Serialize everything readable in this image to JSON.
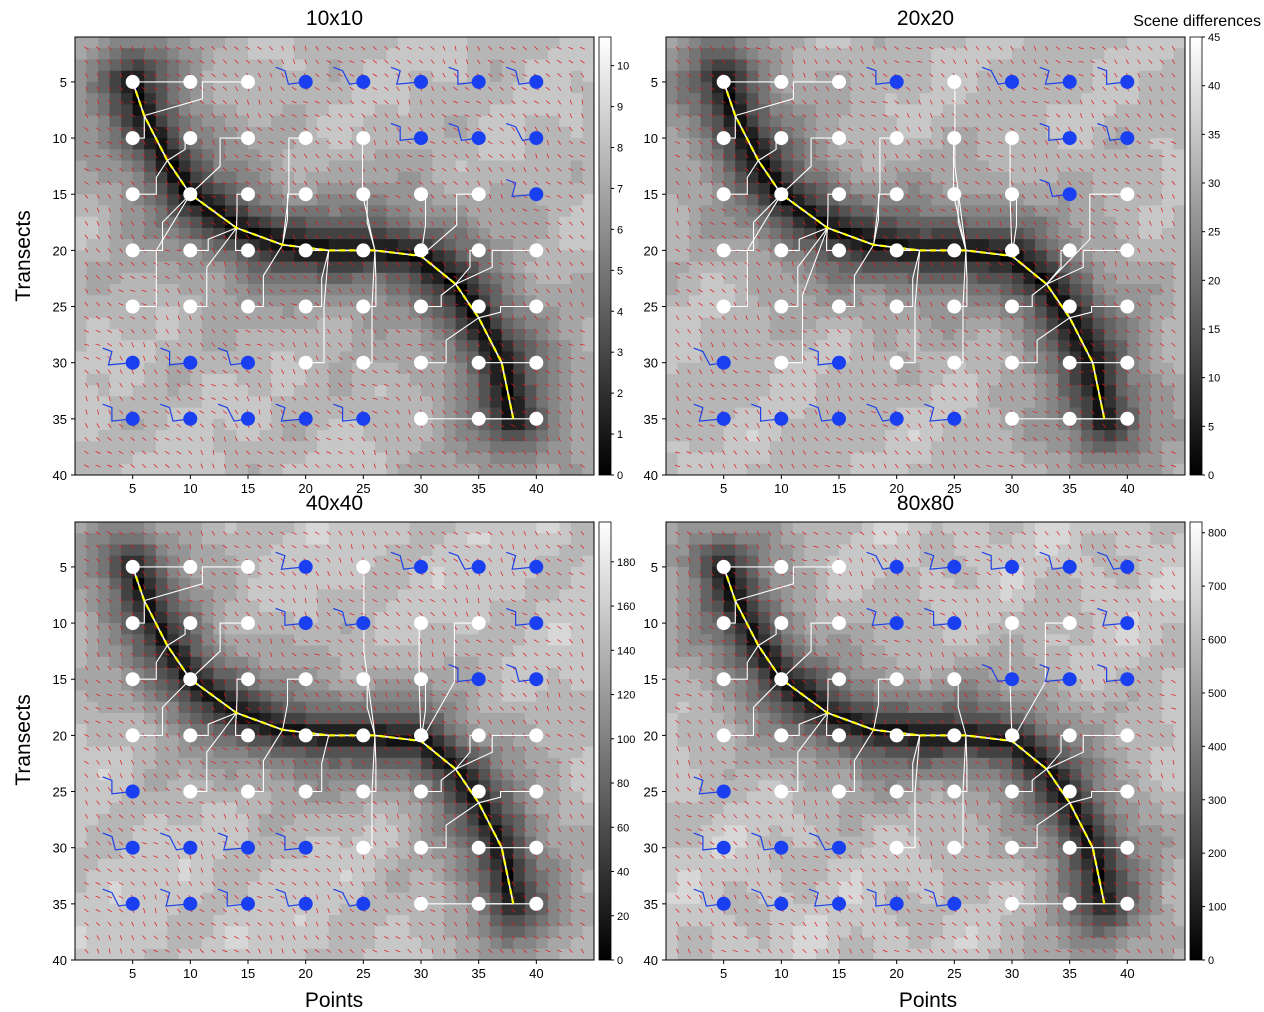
{
  "figure": {
    "colorbar_title": "Scene differences",
    "xlabel": "Points",
    "ylabel": "Transects"
  },
  "colors": {
    "grid_point_white": "#ffffff",
    "grid_point_blue": "#1a3ff0",
    "path_blue": "#1e40e6",
    "path_white": "#ffffff",
    "reference_line": "#ffff00",
    "trace_line": "#ffffff",
    "gradient_arrows": "#e4151b",
    "surface_low": "#000000",
    "surface_high": "#e8e8e8"
  },
  "chart_data": [
    {
      "type": "heatmap",
      "title": "10x10",
      "xlim": [
        0,
        45
      ],
      "ylim": [
        40,
        1
      ],
      "x_ticks": [
        5,
        10,
        15,
        20,
        25,
        30,
        35,
        40
      ],
      "y_ticks": [
        5,
        10,
        15,
        20,
        25,
        30,
        35,
        40
      ],
      "colorbar": {
        "min": 0,
        "max": 10.7,
        "ticks": [
          0,
          1,
          2,
          3,
          4,
          5,
          6,
          7,
          8,
          9,
          10
        ]
      },
      "grid_points": {
        "x": [
          5,
          10,
          15,
          20,
          25,
          30,
          35,
          40
        ],
        "y": [
          5,
          10,
          15,
          20,
          25,
          30,
          35
        ],
        "status": [
          [
            "W",
            "W",
            "W",
            "B",
            "B",
            "B",
            "B",
            "B"
          ],
          [
            "W",
            "W",
            "W",
            "W",
            "W",
            "B",
            "B",
            "B"
          ],
          [
            "W",
            "W",
            "W",
            "W",
            "W",
            "W",
            "W",
            "B"
          ],
          [
            "W",
            "W",
            "W",
            "W",
            "W",
            "W",
            "W",
            "W"
          ],
          [
            "W",
            "W",
            "W",
            "W",
            "W",
            "W",
            "W",
            "W"
          ],
          [
            "B",
            "B",
            "B",
            "W",
            "W",
            "W",
            "W",
            "W"
          ],
          [
            "B",
            "B",
            "B",
            "B",
            "B",
            "W",
            "W",
            "W"
          ]
        ]
      },
      "valley_path": [
        [
          5,
          5
        ],
        [
          6,
          8
        ],
        [
          8,
          12
        ],
        [
          10,
          15
        ],
        [
          14,
          18
        ],
        [
          18,
          19.5
        ],
        [
          22,
          20
        ],
        [
          26,
          20
        ],
        [
          30,
          20.5
        ],
        [
          33,
          23
        ],
        [
          35,
          26
        ],
        [
          37,
          30
        ],
        [
          38,
          35
        ]
      ]
    },
    {
      "type": "heatmap",
      "title": "20x20",
      "xlim": [
        0,
        45
      ],
      "ylim": [
        40,
        1
      ],
      "x_ticks": [
        5,
        10,
        15,
        20,
        25,
        30,
        35,
        40
      ],
      "y_ticks": [
        5,
        10,
        15,
        20,
        25,
        30,
        35,
        40
      ],
      "colorbar": {
        "min": 0,
        "max": 45,
        "ticks": [
          0,
          5,
          10,
          15,
          20,
          25,
          30,
          35,
          40,
          45
        ]
      },
      "grid_points": {
        "x": [
          5,
          10,
          15,
          20,
          25,
          30,
          35,
          40
        ],
        "y": [
          5,
          10,
          15,
          20,
          25,
          30,
          35
        ],
        "status": [
          [
            "W",
            "W",
            "W",
            "B",
            "W",
            "B",
            "B",
            "B"
          ],
          [
            "W",
            "W",
            "W",
            "W",
            "W",
            "W",
            "B",
            "B"
          ],
          [
            "W",
            "W",
            "W",
            "W",
            "W",
            "W",
            "B",
            "W"
          ],
          [
            "W",
            "W",
            "W",
            "W",
            "W",
            "W",
            "W",
            "W"
          ],
          [
            "W",
            "W",
            "W",
            "W",
            "W",
            "W",
            "W",
            "W"
          ],
          [
            "B",
            "W",
            "B",
            "W",
            "W",
            "W",
            "W",
            "W"
          ],
          [
            "B",
            "B",
            "B",
            "B",
            "B",
            "W",
            "W",
            "W"
          ]
        ]
      },
      "valley_path": [
        [
          5,
          5
        ],
        [
          6,
          8
        ],
        [
          8,
          12
        ],
        [
          10,
          15
        ],
        [
          14,
          18
        ],
        [
          18,
          19.5
        ],
        [
          22,
          20
        ],
        [
          26,
          20
        ],
        [
          30,
          20.5
        ],
        [
          33,
          23
        ],
        [
          35,
          26
        ],
        [
          37,
          30
        ],
        [
          38,
          35
        ]
      ]
    },
    {
      "type": "heatmap",
      "title": "40x40",
      "xlim": [
        0,
        45
      ],
      "ylim": [
        40,
        1
      ],
      "x_ticks": [
        5,
        10,
        15,
        20,
        25,
        30,
        35,
        40
      ],
      "y_ticks": [
        5,
        10,
        15,
        20,
        25,
        30,
        35,
        40
      ],
      "colorbar": {
        "min": 0,
        "max": 198,
        "ticks": [
          0,
          20,
          40,
          60,
          80,
          100,
          120,
          140,
          160,
          180
        ]
      },
      "grid_points": {
        "x": [
          5,
          10,
          15,
          20,
          25,
          30,
          35,
          40
        ],
        "y": [
          5,
          10,
          15,
          20,
          25,
          30,
          35
        ],
        "status": [
          [
            "W",
            "W",
            "W",
            "B",
            "W",
            "B",
            "B",
            "B"
          ],
          [
            "W",
            "W",
            "W",
            "B",
            "B",
            "W",
            "W",
            "B"
          ],
          [
            "W",
            "W",
            "W",
            "W",
            "W",
            "W",
            "B",
            "B"
          ],
          [
            "W",
            "W",
            "W",
            "W",
            "W",
            "W",
            "W",
            "W"
          ],
          [
            "B",
            "W",
            "W",
            "W",
            "W",
            "W",
            "W",
            "W"
          ],
          [
            "B",
            "B",
            "B",
            "B",
            "W",
            "W",
            "W",
            "W"
          ],
          [
            "B",
            "B",
            "B",
            "B",
            "B",
            "W",
            "W",
            "W"
          ]
        ]
      },
      "valley_path": [
        [
          5,
          5
        ],
        [
          6,
          8
        ],
        [
          8,
          12
        ],
        [
          10,
          15
        ],
        [
          14,
          18
        ],
        [
          18,
          19.5
        ],
        [
          22,
          20
        ],
        [
          26,
          20
        ],
        [
          30,
          20.5
        ],
        [
          33,
          23
        ],
        [
          35,
          26
        ],
        [
          37,
          30
        ],
        [
          38,
          35
        ]
      ]
    },
    {
      "type": "heatmap",
      "title": "80x80",
      "xlim": [
        0,
        45
      ],
      "ylim": [
        40,
        1
      ],
      "x_ticks": [
        5,
        10,
        15,
        20,
        25,
        30,
        35,
        40
      ],
      "y_ticks": [
        5,
        10,
        15,
        20,
        25,
        30,
        35,
        40
      ],
      "colorbar": {
        "min": 0,
        "max": 820,
        "ticks": [
          0,
          100,
          200,
          300,
          400,
          500,
          600,
          700,
          800
        ]
      },
      "grid_points": {
        "x": [
          5,
          10,
          15,
          20,
          25,
          30,
          35,
          40
        ],
        "y": [
          5,
          10,
          15,
          20,
          25,
          30,
          35
        ],
        "status": [
          [
            "W",
            "W",
            "W",
            "B",
            "B",
            "B",
            "B",
            "B"
          ],
          [
            "W",
            "W",
            "W",
            "B",
            "B",
            "W",
            "W",
            "B"
          ],
          [
            "W",
            "W",
            "W",
            "W",
            "W",
            "B",
            "B",
            "B"
          ],
          [
            "W",
            "W",
            "W",
            "W",
            "W",
            "W",
            "W",
            "W"
          ],
          [
            "B",
            "W",
            "W",
            "W",
            "W",
            "W",
            "W",
            "W"
          ],
          [
            "B",
            "B",
            "B",
            "W",
            "W",
            "W",
            "W",
            "W"
          ],
          [
            "B",
            "B",
            "B",
            "B",
            "B",
            "W",
            "W",
            "W"
          ]
        ]
      },
      "valley_path": [
        [
          5,
          5
        ],
        [
          6,
          8
        ],
        [
          8,
          12
        ],
        [
          10,
          15
        ],
        [
          14,
          18
        ],
        [
          18,
          19.5
        ],
        [
          22,
          20
        ],
        [
          26,
          20
        ],
        [
          30,
          20.5
        ],
        [
          33,
          23
        ],
        [
          35,
          26
        ],
        [
          37,
          30
        ],
        [
          38,
          35
        ]
      ]
    }
  ]
}
